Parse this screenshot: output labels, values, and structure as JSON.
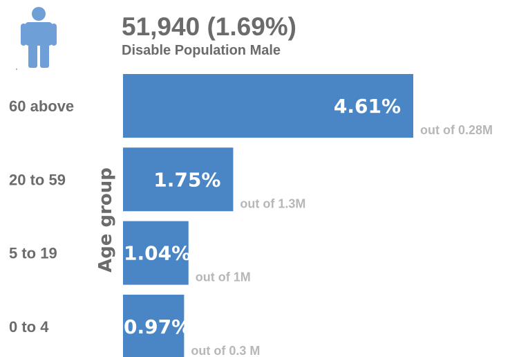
{
  "header": {
    "icon": "person-icon",
    "headline": "51,940 (1.69%)",
    "subtitle": "Disable Population Male"
  },
  "colors": {
    "bar": "#4a86c5",
    "bar_label": "#ffffff",
    "category_label": "#6b6b6b",
    "axis_title": "#6b6b6b",
    "note": "#b7b7b7",
    "icon": "#6e9fd6"
  },
  "chart_data": {
    "type": "bar",
    "orientation": "horizontal",
    "title": "Disable Population Male",
    "ylabel": "Age group",
    "xlabel": "",
    "categories": [
      "60 above",
      "20 to 59",
      "5 to 19",
      "0 to 4"
    ],
    "values": [
      4.61,
      1.75,
      1.04,
      0.97
    ],
    "value_labels": [
      "4.61%",
      "1.75%",
      "1.04%",
      "0.97%"
    ],
    "notes": [
      "out of 0.28M",
      "out of 1.3M",
      "out of 1M",
      "out of 0.3 M"
    ],
    "unit": "%",
    "grid": false,
    "legend": "none"
  }
}
